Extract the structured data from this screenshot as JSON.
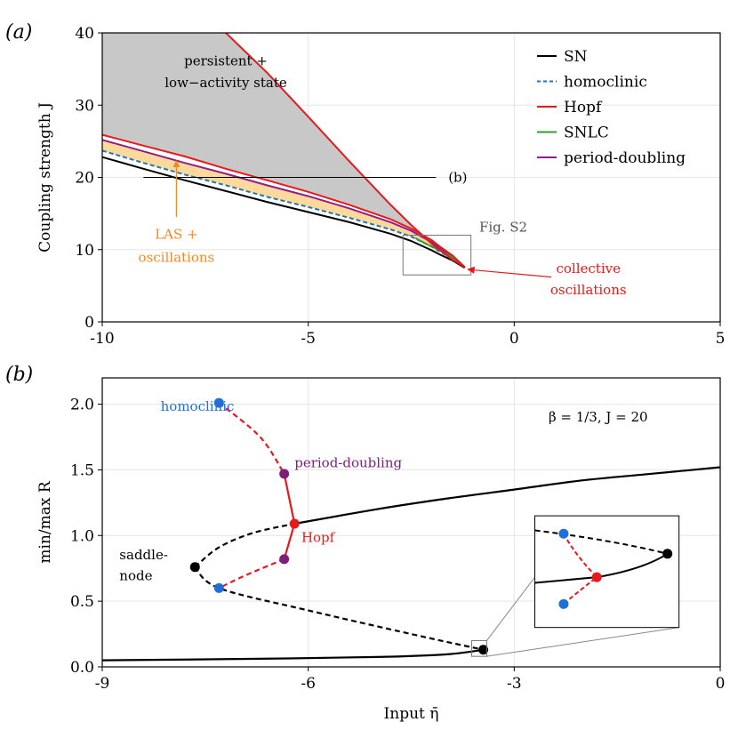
{
  "chart_data": [
    {
      "panel": "(a)",
      "type": "line",
      "xlabel": "",
      "ylabel": "Coupling strength J",
      "xlim": [
        -10,
        5
      ],
      "ylim": [
        0,
        40
      ],
      "xticks": [
        -10,
        -5,
        0,
        5
      ],
      "yticks": [
        0,
        10,
        20,
        30,
        40
      ],
      "xtick_labels": [
        "-10",
        "-5",
        "0",
        "5"
      ],
      "ytick_labels": [
        "0",
        "10",
        "20",
        "30",
        "40"
      ],
      "grid": true,
      "legend_position": "top-right",
      "series": [
        {
          "name": "SN",
          "color": "#000000",
          "style": "solid",
          "x": [
            -10,
            -9,
            -8,
            -7,
            -6,
            -5,
            -4,
            -3,
            -2.5,
            -2,
            -1.8,
            -1.5,
            -1.2
          ],
          "y": [
            22.8,
            21.2,
            19.6,
            18.1,
            16.6,
            15.2,
            13.8,
            12.2,
            11.2,
            9.9,
            9.3,
            8.5,
            7.5
          ]
        },
        {
          "name": "homoclinic",
          "color": "#1f77b4",
          "style": "dashed",
          "x": [
            -10,
            -9,
            -8,
            -7,
            -6,
            -5,
            -4,
            -3,
            -2.5,
            -2,
            -1.8,
            -1.5,
            -1.2
          ],
          "y": [
            23.7,
            22.0,
            20.4,
            18.9,
            17.3,
            15.9,
            14.4,
            12.8,
            11.8,
            10.4,
            9.7,
            8.8,
            7.6
          ]
        },
        {
          "name": "Hopf",
          "color": "#e8191b",
          "style": "solid",
          "x": [
            -10,
            -9,
            -8,
            -7,
            -6,
            -5,
            -4,
            -3,
            -2.5,
            -2,
            -1.8,
            -1.5,
            -1.2
          ],
          "y": [
            25.9,
            24.4,
            22.9,
            21.2,
            19.6,
            18.0,
            16.2,
            14.2,
            12.9,
            11.3,
            10.4,
            9.2,
            7.6
          ]
        },
        {
          "name": "SNLC",
          "color": "#2ca02c",
          "style": "solid",
          "x": [
            -2.4,
            -2.1,
            -1.8,
            -1.5,
            -1.2
          ],
          "y": [
            11.6,
            10.7,
            9.9,
            8.9,
            7.6
          ]
        },
        {
          "name": "period-doubling",
          "color": "#8e1e8e",
          "style": "solid",
          "x": [
            -10,
            -9,
            -8,
            -7,
            -6,
            -5,
            -4,
            -3,
            -2.5,
            -2,
            -1.8,
            -1.5,
            -1.2
          ],
          "y": [
            25.2,
            23.6,
            22.0,
            20.5,
            18.9,
            17.4,
            15.7,
            13.8,
            12.6,
            11.0,
            10.2,
            9.0,
            7.6
          ]
        },
        {
          "name": "Hopf (upper branch)",
          "color": "#e8191b",
          "style": "solid",
          "x": [
            -7.0,
            -6.0,
            -5.0,
            -4.0,
            -3.0,
            -2.5,
            -2.0,
            -1.5,
            -1.2
          ],
          "y": [
            40,
            34.5,
            28.4,
            22.2,
            16.2,
            13.4,
            10.8,
            8.6,
            7.6
          ]
        }
      ],
      "annotations": [
        {
          "text": "persistent +",
          "x": -7.0,
          "y": 35.5
        },
        {
          "text": "low−activity state",
          "x": -7.0,
          "y": 32.5
        },
        {
          "text": "LAS +",
          "x": -8.2,
          "y": 11.5
        },
        {
          "text": "oscillations",
          "x": -8.2,
          "y": 8.3
        },
        {
          "text": "(b)",
          "x": -1.3,
          "y": 20
        },
        {
          "text": "Fig. S2",
          "x": -0.8,
          "y": 12.2
        },
        {
          "text": "collective",
          "x": 1.8,
          "y": 6.8
        },
        {
          "text": "oscillations",
          "x": 1.8,
          "y": 3.8
        }
      ]
    },
    {
      "panel": "(b)",
      "type": "line",
      "xlabel": "Input η̄",
      "ylabel": "min/max R",
      "xlim": [
        -9,
        0
      ],
      "ylim": [
        0,
        2.2
      ],
      "xticks": [
        -9,
        -6,
        -3,
        0
      ],
      "yticks": [
        0,
        0.5,
        1.0,
        1.5,
        2.0
      ],
      "xtick_labels": [
        "-9",
        "-6",
        "-3",
        "0"
      ],
      "ytick_labels": [
        "0.0",
        "0.5",
        "1.0",
        "1.5",
        "2.0"
      ],
      "grid": true,
      "parameters": "β = 1/3,  J = 20",
      "series": [
        {
          "name": "stable upper branch",
          "color": "#000000",
          "style": "solid",
          "x": [
            -6.2,
            -5,
            -4,
            -3,
            -2,
            -1,
            0
          ],
          "y": [
            1.09,
            1.2,
            1.28,
            1.35,
            1.42,
            1.47,
            1.52
          ]
        },
        {
          "name": "unstable middle branch (upper)",
          "color": "#000000",
          "style": "dashed",
          "x": [
            -7.65,
            -7.3,
            -6.8,
            -6.2
          ],
          "y": [
            0.76,
            0.91,
            1.02,
            1.09
          ]
        },
        {
          "name": "unstable middle branch (lower)",
          "color": "#000000",
          "style": "dashed",
          "x": [
            -7.65,
            -7.3,
            -6,
            -4.5,
            -3.45
          ],
          "y": [
            0.76,
            0.6,
            0.43,
            0.25,
            0.13
          ]
        },
        {
          "name": "stable lower branch",
          "color": "#000000",
          "style": "solid",
          "x": [
            -9,
            -7,
            -5,
            -4,
            -3.45
          ],
          "y": [
            0.05,
            0.06,
            0.075,
            0.095,
            0.13
          ]
        },
        {
          "name": "limit cycle max (unstable)",
          "color": "#e8191b",
          "style": "dashed",
          "x": [
            -7.3,
            -6.7,
            -6.35
          ],
          "y": [
            2.01,
            1.75,
            1.47
          ]
        },
        {
          "name": "limit cycle max (stable)",
          "color": "#e8191b",
          "style": "solid",
          "x": [
            -6.35,
            -6.2
          ],
          "y": [
            1.47,
            1.09
          ]
        },
        {
          "name": "limit cycle min (stable)",
          "color": "#e8191b",
          "style": "solid",
          "x": [
            -6.2,
            -6.35
          ],
          "y": [
            1.09,
            0.82
          ]
        },
        {
          "name": "limit cycle min (unstable)",
          "color": "#e8191b",
          "style": "dashed",
          "x": [
            -6.35,
            -6.9,
            -7.3
          ],
          "y": [
            0.82,
            0.7,
            0.6
          ]
        }
      ],
      "points": [
        {
          "label": "homoclinic",
          "x": -7.3,
          "y": 2.01,
          "color": "#1f6fd8"
        },
        {
          "label": "homoclinic",
          "x": -7.3,
          "y": 0.6,
          "color": "#1f6fd8"
        },
        {
          "label": "period-doubling",
          "x": -6.35,
          "y": 1.47,
          "color": "#7b1f7b"
        },
        {
          "label": "period-doubling",
          "x": -6.35,
          "y": 0.82,
          "color": "#7b1f7b"
        },
        {
          "label": "Hopf",
          "x": -6.2,
          "y": 1.09,
          "color": "#e8191b"
        },
        {
          "label": "saddle-node",
          "x": -7.65,
          "y": 0.76,
          "color": "#000000"
        },
        {
          "label": "saddle-node",
          "x": -3.45,
          "y": 0.13,
          "color": "#000000"
        }
      ],
      "annotations": [
        {
          "text": "homoclinic",
          "color": "#1f6fd8"
        },
        {
          "text": "period-doubling",
          "color": "#7b1f7b"
        },
        {
          "text": "Hopf",
          "color": "#e8191b"
        },
        {
          "text": "saddle-",
          "color": "#000000"
        },
        {
          "text": "node",
          "color": "#000000"
        }
      ]
    }
  ],
  "panel_a": {
    "label": "(a)",
    "ylabel": "Coupling strength J",
    "legend": [
      {
        "label": "SN",
        "color": "#000000",
        "dash": false
      },
      {
        "label": "homoclinic",
        "color": "#1f77b4",
        "dash": true
      },
      {
        "label": "Hopf",
        "color": "#e8191b",
        "dash": false
      },
      {
        "label": "SNLC",
        "color": "#2ca02c",
        "dash": false
      },
      {
        "label": "period-doubling",
        "color": "#8e1e8e",
        "dash": false
      }
    ],
    "region_persistent_1": "persistent +",
    "region_persistent_2": "low−activity state",
    "las_1": "LAS +",
    "las_2": "oscillations",
    "ref_b": "(b)",
    "fig_s2": "Fig. S2",
    "collective_1": "collective",
    "collective_2": "oscillations"
  },
  "panel_b": {
    "label": "(b)",
    "ylabel": "min/max R",
    "xlabel": "Input η̄",
    "params": "β = 1/3,  J = 20",
    "homoclinic": "homoclinic",
    "period_doubling": "period-doubling",
    "hopf": "Hopf",
    "saddle_1": "saddle-",
    "saddle_2": "node"
  },
  "colors": {
    "gray_region": "#c8c8c8",
    "orange_region": "#fdd99b",
    "orange_text": "#f08a24",
    "red": "#e8191b",
    "blue": "#1f6fd8",
    "purple": "#7b1f7b",
    "grid": "#e6e6e6"
  }
}
